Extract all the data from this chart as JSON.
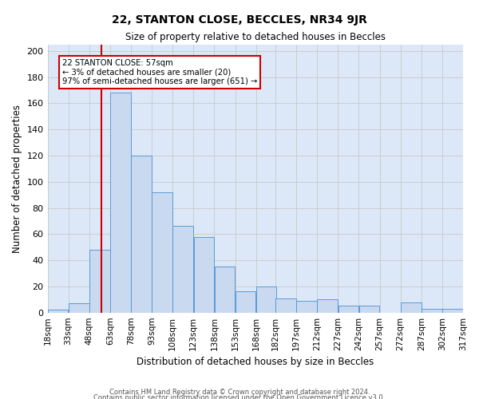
{
  "title": "22, STANTON CLOSE, BECCLES, NR34 9JR",
  "subtitle": "Size of property relative to detached houses in Beccles",
  "xlabel": "Distribution of detached houses by size in Beccles",
  "ylabel": "Number of detached properties",
  "bin_edges": [
    18,
    33,
    48,
    63,
    78,
    93,
    108,
    123,
    138,
    153,
    168,
    182,
    197,
    212,
    227,
    242,
    257,
    272,
    287,
    302,
    317
  ],
  "bar_heights": [
    2,
    7,
    48,
    168,
    120,
    92,
    66,
    58,
    35,
    16,
    20,
    11,
    9,
    10,
    5,
    5,
    0,
    8,
    3,
    3
  ],
  "bar_color": "#c8d9f0",
  "bar_edge_color": "#5b9bd5",
  "grid_color": "#c8c8c8",
  "background_color": "#dce8f8",
  "fig_background": "#ffffff",
  "vline_x": 57,
  "vline_color": "#cc0000",
  "annotation_text": "22 STANTON CLOSE: 57sqm\n← 3% of detached houses are smaller (20)\n97% of semi-detached houses are larger (651) →",
  "annotation_box_color": "#ffffff",
  "annotation_box_edge_color": "#cc0000",
  "ylim": [
    0,
    205
  ],
  "yticks": [
    0,
    20,
    40,
    60,
    80,
    100,
    120,
    140,
    160,
    180,
    200
  ],
  "tick_labels": [
    "18sqm",
    "33sqm",
    "48sqm",
    "63sqm",
    "78sqm",
    "93sqm",
    "108sqm",
    "123sqm",
    "138sqm",
    "153sqm",
    "168sqm",
    "182sqm",
    "197sqm",
    "212sqm",
    "227sqm",
    "242sqm",
    "257sqm",
    "272sqm",
    "287sqm",
    "302sqm",
    "317sqm"
  ],
  "footer1": "Contains HM Land Registry data © Crown copyright and database right 2024.",
  "footer2": "Contains public sector information licensed under the Open Government Licence v3.0."
}
